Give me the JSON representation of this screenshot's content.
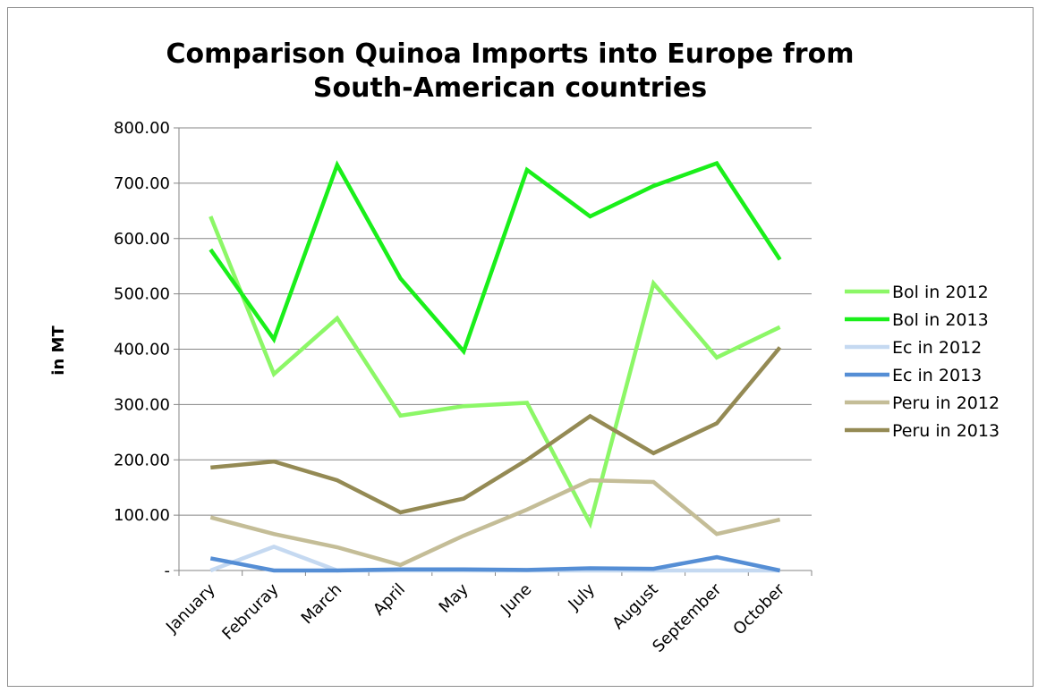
{
  "chart_data": {
    "type": "line",
    "title_line1": "Comparison Quinoa Imports into Europe from",
    "title_line2": "South-American countries",
    "ylabel": "in MT",
    "xlabel": "",
    "categories": [
      "January",
      "Februray",
      "March",
      "April",
      "May",
      "June",
      "July",
      "August",
      "September",
      "October"
    ],
    "ylim": [
      0,
      800
    ],
    "yticks": [
      {
        "value": 0,
        "label": "-"
      },
      {
        "value": 100,
        "label": "100.00"
      },
      {
        "value": 200,
        "label": "200.00"
      },
      {
        "value": 300,
        "label": "300.00"
      },
      {
        "value": 400,
        "label": "400.00"
      },
      {
        "value": 500,
        "label": "500.00"
      },
      {
        "value": 600,
        "label": "600.00"
      },
      {
        "value": 700,
        "label": "700.00"
      },
      {
        "value": 800,
        "label": "800.00"
      }
    ],
    "grid": true,
    "legend_position": "right",
    "series": [
      {
        "name": "Bol in 2012",
        "color": "#8cf767",
        "values": [
          640,
          355,
          456,
          280,
          297,
          303,
          85,
          519,
          385,
          440
        ]
      },
      {
        "name": "Bol in 2013",
        "color": "#1aef1a",
        "values": [
          580,
          418,
          733,
          528,
          396,
          724,
          640,
          695,
          736,
          562
        ]
      },
      {
        "name": "Ec in 2012",
        "color": "#c5d9f1",
        "values": [
          0,
          43,
          0,
          0,
          0,
          0,
          0,
          0,
          0,
          0
        ]
      },
      {
        "name": "Ec in 2013",
        "color": "#558ed5",
        "values": [
          22,
          0,
          0,
          2,
          2,
          1,
          4,
          3,
          24,
          0
        ]
      },
      {
        "name": "Peru in 2012",
        "color": "#c4bd97",
        "values": [
          96,
          66,
          42,
          10,
          63,
          110,
          163,
          160,
          66,
          92
        ]
      },
      {
        "name": "Peru in 2013",
        "color": "#948a54",
        "values": [
          186,
          197,
          163,
          105,
          130,
          200,
          279,
          212,
          266,
          403
        ]
      }
    ]
  }
}
